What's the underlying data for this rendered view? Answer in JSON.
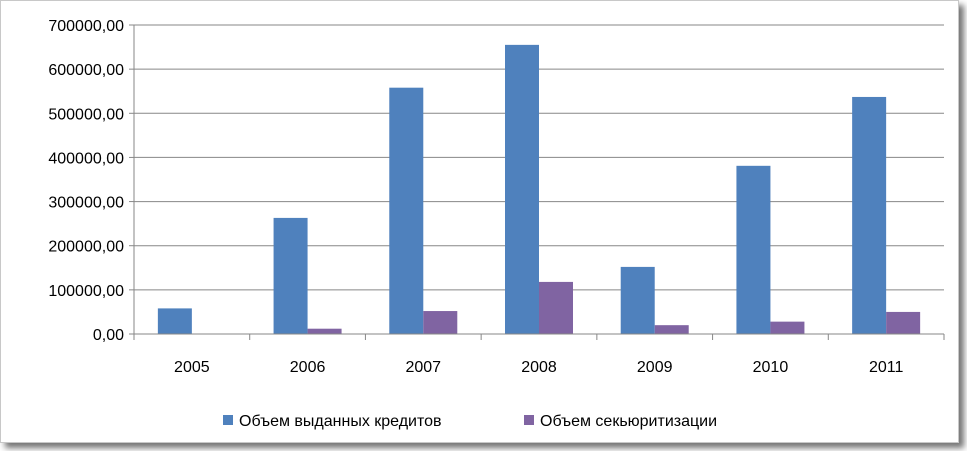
{
  "chart_data": {
    "type": "bar",
    "categories": [
      "2005",
      "2006",
      "2007",
      "2008",
      "2009",
      "2010",
      "2011"
    ],
    "series": [
      {
        "name": "Объем выданных кредитов",
        "color": "#4f81bd",
        "values": [
          58000,
          263000,
          558000,
          655000,
          152000,
          381000,
          537000
        ]
      },
      {
        "name": "Объем секьюритизации",
        "color": "#8064a2",
        "values": [
          0,
          12000,
          52000,
          118000,
          20000,
          28000,
          50000
        ]
      }
    ],
    "y_ticks": [
      "0,00",
      "100000,00",
      "200000,00",
      "300000,00",
      "400000,00",
      "500000,00",
      "600000,00",
      "700000,00"
    ],
    "ylim": [
      0,
      700000
    ],
    "grid": true,
    "legend_position": "bottom",
    "title": "",
    "xlabel": "",
    "ylabel": ""
  }
}
